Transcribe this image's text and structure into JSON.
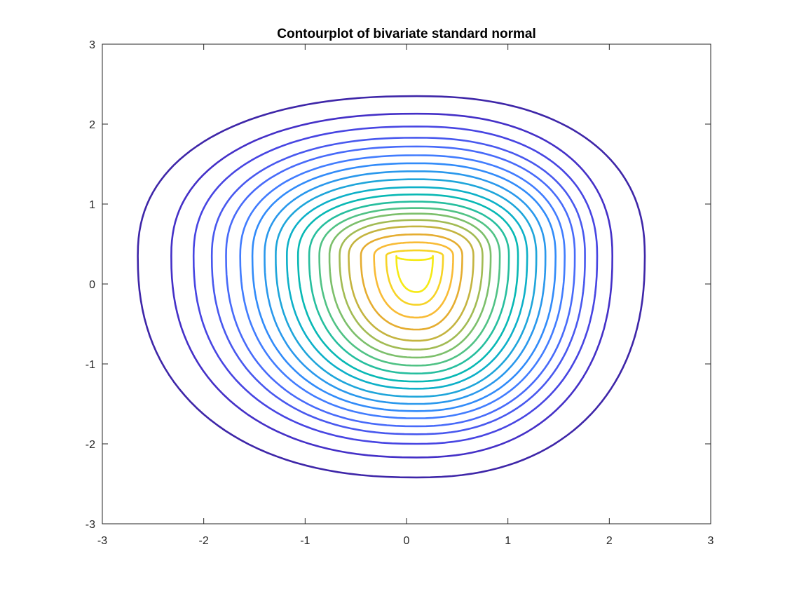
{
  "chart_data": {
    "type": "contour",
    "title": "Contourplot of bivariate standard normal",
    "xlabel": "",
    "ylabel": "",
    "xlim": [
      -3,
      3
    ],
    "ylim": [
      -3,
      3
    ],
    "xticks": [
      -3,
      -2,
      -1,
      0,
      1,
      2,
      3
    ],
    "yticks": [
      -3,
      -2,
      -1,
      0,
      1,
      2,
      3
    ],
    "xtick_labels": [
      "-3",
      "-2",
      "-1",
      "0",
      "1",
      "2",
      "3"
    ],
    "ytick_labels": [
      "-3",
      "-2",
      "-1",
      "0",
      "1",
      "2",
      "3"
    ],
    "grid": false,
    "box": true,
    "center": [
      0.1,
      0.35
    ],
    "levels": [
      {
        "top": 2.35,
        "bottom": -2.42,
        "left": -2.65,
        "right": 2.35,
        "color": "#3e26a8"
      },
      {
        "top": 2.13,
        "bottom": -2.17,
        "left": -2.32,
        "right": 2.03,
        "color": "#4430c7"
      },
      {
        "top": 1.97,
        "bottom": -2.0,
        "left": -2.1,
        "right": 1.88,
        "color": "#4745e2"
      },
      {
        "top": 1.83,
        "bottom": -1.88,
        "left": -1.92,
        "right": 1.76,
        "color": "#4858ee"
      },
      {
        "top": 1.72,
        "bottom": -1.78,
        "left": -1.78,
        "right": 1.66,
        "color": "#476af9"
      },
      {
        "top": 1.61,
        "bottom": -1.68,
        "left": -1.64,
        "right": 1.56,
        "color": "#417cfe"
      },
      {
        "top": 1.51,
        "bottom": -1.59,
        "left": -1.52,
        "right": 1.47,
        "color": "#318bf9"
      },
      {
        "top": 1.41,
        "bottom": -1.5,
        "left": -1.4,
        "right": 1.37,
        "color": "#2998ec"
      },
      {
        "top": 1.31,
        "bottom": -1.41,
        "left": -1.29,
        "right": 1.28,
        "color": "#1ea5da"
      },
      {
        "top": 1.21,
        "bottom": -1.31,
        "left": -1.18,
        "right": 1.19,
        "color": "#0db0c8"
      },
      {
        "top": 1.12,
        "bottom": -1.22,
        "left": -1.07,
        "right": 1.1,
        "color": "#08b8b4"
      },
      {
        "top": 1.03,
        "bottom": -1.12,
        "left": -0.96,
        "right": 1.01,
        "color": "#26be9e"
      },
      {
        "top": 0.95,
        "bottom": -1.02,
        "left": -0.86,
        "right": 0.92,
        "color": "#50c285"
      },
      {
        "top": 0.88,
        "bottom": -0.92,
        "left": -0.76,
        "right": 0.83,
        "color": "#7cbf6b"
      },
      {
        "top": 0.8,
        "bottom": -0.82,
        "left": -0.66,
        "right": 0.75,
        "color": "#a2bb53"
      },
      {
        "top": 0.72,
        "bottom": -0.71,
        "left": -0.57,
        "right": 0.66,
        "color": "#c4b43f"
      },
      {
        "top": 0.62,
        "bottom": -0.57,
        "left": -0.45,
        "right": 0.55,
        "color": "#e5ad30"
      },
      {
        "top": 0.52,
        "bottom": -0.42,
        "left": -0.32,
        "right": 0.46,
        "color": "#f8bb35"
      },
      {
        "top": 0.42,
        "bottom": -0.26,
        "left": -0.2,
        "right": 0.36,
        "color": "#f6d326"
      },
      {
        "top": 0.3,
        "bottom": -0.1,
        "left": -0.1,
        "right": 0.26,
        "color": "#f5ea15"
      }
    ]
  }
}
